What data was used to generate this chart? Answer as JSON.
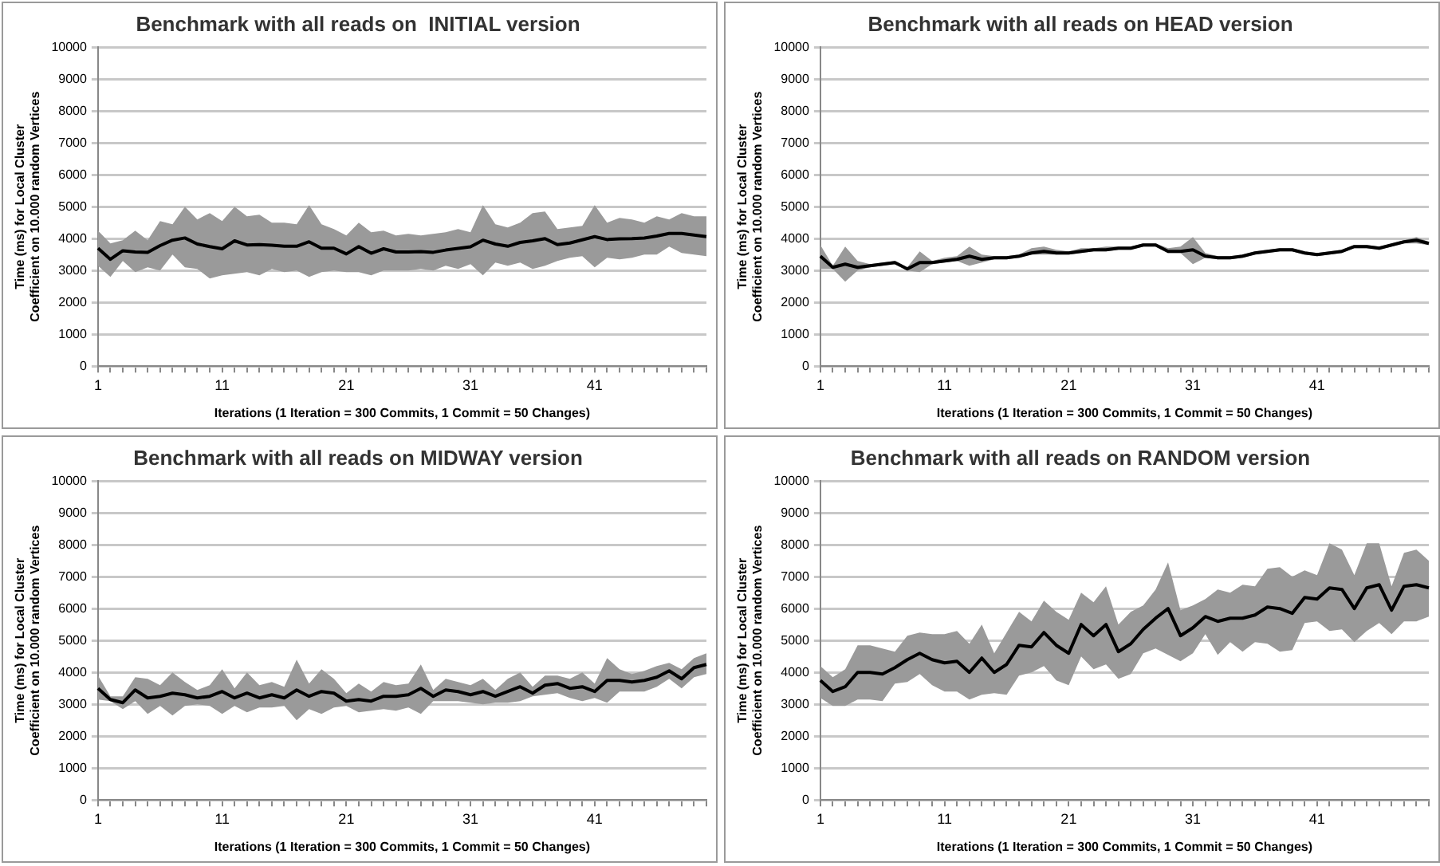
{
  "chart_data": [
    {
      "type": "line",
      "title": "Benchmark with all reads on  INITIAL version",
      "xlabel": "Iterations (1 Iteration = 300 Commits, 1 Commit = 50 Changes)",
      "ylabel": "Time (ms) for Local Cluster Coefficient on 10.000 random Vertices",
      "categories": [
        "1",
        null,
        null,
        null,
        null,
        null,
        null,
        null,
        null,
        null,
        "11",
        null,
        null,
        null,
        null,
        null,
        null,
        null,
        null,
        null,
        "21",
        null,
        null,
        null,
        null,
        null,
        null,
        null,
        null,
        null,
        "31",
        null,
        null,
        null,
        null,
        null,
        null,
        null,
        null,
        null,
        "41",
        null,
        null,
        null,
        null,
        null,
        null,
        null,
        null,
        null
      ],
      "ylim": [
        0,
        10000
      ],
      "yticks": [
        0,
        1000,
        2000,
        3000,
        4000,
        5000,
        6000,
        7000,
        8000,
        9000,
        10000
      ],
      "grid": "y",
      "legend": false,
      "marker": "none",
      "series": [
        {
          "color": "#000000",
          "values": [
            3700,
            3350,
            3620,
            3580,
            3570,
            3780,
            3950,
            4020,
            3830,
            3750,
            3680,
            3930,
            3800,
            3810,
            3790,
            3760,
            3760,
            3900,
            3700,
            3700,
            3520,
            3750,
            3540,
            3680,
            3580,
            3580,
            3590,
            3570,
            3640,
            3690,
            3740,
            3950,
            3830,
            3760,
            3880,
            3930,
            4000,
            3810,
            3860,
            3960,
            4060,
            3970,
            3990,
            4000,
            4020,
            4080,
            4160,
            4160,
            4110,
            4060
          ],
          "upper": [
            4250,
            3850,
            3950,
            4250,
            3950,
            4550,
            4450,
            5000,
            4600,
            4800,
            4550,
            5000,
            4700,
            4750,
            4500,
            4500,
            4450,
            5050,
            4450,
            4300,
            4100,
            4500,
            4200,
            4250,
            4100,
            4150,
            4100,
            4150,
            4200,
            4300,
            4200,
            5050,
            4450,
            4350,
            4500,
            4800,
            4850,
            4300,
            4350,
            4400,
            5050,
            4500,
            4650,
            4600,
            4500,
            4700,
            4600,
            4800,
            4700,
            4700
          ],
          "lower": [
            3150,
            2800,
            3300,
            2950,
            3100,
            3000,
            3500,
            3100,
            3050,
            2750,
            2850,
            2900,
            2950,
            2850,
            3050,
            2950,
            3000,
            2800,
            2950,
            3000,
            2950,
            2950,
            2850,
            3000,
            3000,
            3000,
            3050,
            3000,
            3150,
            3050,
            3200,
            2850,
            3250,
            3150,
            3250,
            3050,
            3150,
            3300,
            3400,
            3450,
            3100,
            3400,
            3350,
            3400,
            3500,
            3500,
            3750,
            3550,
            3500,
            3450
          ]
        }
      ]
    },
    {
      "type": "line",
      "title": "Benchmark with all reads on HEAD version",
      "xlabel": "Iterations (1 Iteration = 300 Commits, 1 Commit = 50 Changes)",
      "ylabel": "Time (ms) for Local Cluster Coefficient on 10.000 random Vertices",
      "categories": [
        "1",
        null,
        null,
        null,
        null,
        null,
        null,
        null,
        null,
        null,
        "11",
        null,
        null,
        null,
        null,
        null,
        null,
        null,
        null,
        null,
        "21",
        null,
        null,
        null,
        null,
        null,
        null,
        null,
        null,
        null,
        "31",
        null,
        null,
        null,
        null,
        null,
        null,
        null,
        null,
        null,
        "41",
        null,
        null,
        null,
        null,
        null,
        null,
        null,
        null,
        null
      ],
      "ylim": [
        0,
        10000
      ],
      "yticks": [
        0,
        1000,
        2000,
        3000,
        4000,
        5000,
        6000,
        7000,
        8000,
        9000,
        10000
      ],
      "grid": "y",
      "legend": false,
      "marker": "none",
      "series": [
        {
          "color": "#000000",
          "values": [
            3450,
            3100,
            3200,
            3100,
            3150,
            3200,
            3250,
            3050,
            3250,
            3250,
            3300,
            3350,
            3450,
            3350,
            3400,
            3400,
            3450,
            3550,
            3600,
            3550,
            3550,
            3600,
            3650,
            3650,
            3700,
            3700,
            3800,
            3800,
            3600,
            3600,
            3650,
            3450,
            3400,
            3400,
            3450,
            3550,
            3600,
            3650,
            3650,
            3550,
            3500,
            3550,
            3600,
            3750,
            3750,
            3700,
            3800,
            3900,
            3950,
            3850
          ],
          "upper": [
            3800,
            3150,
            3750,
            3300,
            3200,
            3250,
            3300,
            3100,
            3600,
            3300,
            3400,
            3450,
            3750,
            3500,
            3450,
            3450,
            3500,
            3700,
            3750,
            3650,
            3600,
            3700,
            3700,
            3750,
            3750,
            3750,
            3850,
            3850,
            3700,
            3750,
            4050,
            3550,
            3450,
            3450,
            3500,
            3600,
            3650,
            3700,
            3700,
            3600,
            3550,
            3600,
            3650,
            3800,
            3800,
            3750,
            3850,
            3950,
            4050,
            3900
          ],
          "lower": [
            3050,
            3050,
            2650,
            3000,
            3100,
            3150,
            3200,
            3000,
            2950,
            3200,
            3250,
            3300,
            3150,
            3250,
            3350,
            3350,
            3400,
            3500,
            3500,
            3500,
            3500,
            3550,
            3600,
            3600,
            3650,
            3650,
            3750,
            3750,
            3550,
            3550,
            3200,
            3400,
            3350,
            3350,
            3400,
            3500,
            3550,
            3600,
            3600,
            3500,
            3450,
            3500,
            3550,
            3700,
            3700,
            3650,
            3750,
            3850,
            3850,
            3800
          ]
        }
      ]
    },
    {
      "type": "line",
      "title": "Benchmark with all reads on MIDWAY version",
      "xlabel": "Iterations (1 Iteration = 300 Commits, 1 Commit = 50 Changes)",
      "ylabel": "Time (ms) for Local Cluster Coefficient on 10.000 random Vertices",
      "categories": [
        "1",
        null,
        null,
        null,
        null,
        null,
        null,
        null,
        null,
        null,
        "11",
        null,
        null,
        null,
        null,
        null,
        null,
        null,
        null,
        null,
        "21",
        null,
        null,
        null,
        null,
        null,
        null,
        null,
        null,
        null,
        "31",
        null,
        null,
        null,
        null,
        null,
        null,
        null,
        null,
        null,
        "41",
        null,
        null,
        null,
        null,
        null,
        null,
        null,
        null,
        null
      ],
      "ylim": [
        0,
        10000
      ],
      "yticks": [
        0,
        1000,
        2000,
        3000,
        4000,
        5000,
        6000,
        7000,
        8000,
        9000,
        10000
      ],
      "grid": "y",
      "legend": false,
      "marker": "none",
      "series": [
        {
          "color": "#000000",
          "values": [
            3500,
            3150,
            3050,
            3450,
            3200,
            3250,
            3350,
            3300,
            3200,
            3250,
            3400,
            3200,
            3350,
            3200,
            3300,
            3200,
            3450,
            3250,
            3400,
            3350,
            3100,
            3150,
            3100,
            3250,
            3250,
            3300,
            3500,
            3250,
            3450,
            3400,
            3300,
            3400,
            3250,
            3400,
            3550,
            3350,
            3600,
            3650,
            3500,
            3550,
            3400,
            3750,
            3750,
            3700,
            3750,
            3850,
            4050,
            3800,
            4150,
            4250
          ],
          "upper": [
            3900,
            3250,
            3250,
            3850,
            3800,
            3600,
            4000,
            3700,
            3450,
            3600,
            4100,
            3500,
            4000,
            3600,
            3700,
            3550,
            4400,
            3650,
            4100,
            3800,
            3350,
            3650,
            3400,
            3700,
            3600,
            3650,
            4250,
            3450,
            3800,
            3700,
            3600,
            3800,
            3450,
            3800,
            4000,
            3550,
            3900,
            3900,
            3800,
            4000,
            3650,
            4450,
            4100,
            3950,
            4050,
            4200,
            4300,
            4100,
            4450,
            4600
          ],
          "lower": [
            3150,
            3100,
            2850,
            3100,
            2700,
            2950,
            2650,
            2950,
            3000,
            2950,
            2700,
            2950,
            2750,
            2900,
            2900,
            2950,
            2500,
            2850,
            2700,
            2900,
            2950,
            2750,
            2800,
            2850,
            2800,
            2900,
            2700,
            3100,
            3100,
            3100,
            3050,
            3000,
            3050,
            3050,
            3100,
            3250,
            3300,
            3350,
            3200,
            3100,
            3200,
            3050,
            3400,
            3400,
            3400,
            3550,
            3800,
            3500,
            3850,
            3950
          ]
        }
      ]
    },
    {
      "type": "line",
      "title": "Benchmark with all reads on RANDOM version",
      "xlabel": "Iterations (1 Iteration = 300 Commits, 1 Commit = 50 Changes)",
      "ylabel": "Time (ms) for Local Cluster Coefficient on 10.000 random Vertices",
      "categories": [
        "1",
        null,
        null,
        null,
        null,
        null,
        null,
        null,
        null,
        null,
        "11",
        null,
        null,
        null,
        null,
        null,
        null,
        null,
        null,
        null,
        "21",
        null,
        null,
        null,
        null,
        null,
        null,
        null,
        null,
        null,
        "31",
        null,
        null,
        null,
        null,
        null,
        null,
        null,
        null,
        null,
        "41",
        null,
        null,
        null,
        null,
        null,
        null,
        null,
        null,
        null
      ],
      "ylim": [
        0,
        10000
      ],
      "yticks": [
        0,
        1000,
        2000,
        3000,
        4000,
        5000,
        6000,
        7000,
        8000,
        9000,
        10000
      ],
      "grid": "y",
      "legend": false,
      "marker": "none",
      "series": [
        {
          "color": "#000000",
          "values": [
            3750,
            3400,
            3550,
            4000,
            4000,
            3950,
            4150,
            4400,
            4600,
            4400,
            4300,
            4350,
            4000,
            4450,
            4000,
            4250,
            4850,
            4800,
            5250,
            4850,
            4600,
            5500,
            5150,
            5500,
            4650,
            4900,
            5350,
            5700,
            6000,
            5150,
            5400,
            5750,
            5600,
            5700,
            5700,
            5800,
            6050,
            6000,
            5850,
            6350,
            6300,
            6650,
            6600,
            6000,
            6650,
            6750,
            5950,
            6700,
            6750,
            6650
          ],
          "upper": [
            4200,
            3850,
            4100,
            4850,
            4850,
            4750,
            4650,
            5150,
            5250,
            5200,
            5200,
            5300,
            4900,
            5500,
            4600,
            5250,
            5900,
            5600,
            6250,
            5900,
            5650,
            6500,
            6200,
            6700,
            5500,
            5900,
            6100,
            6600,
            7450,
            5950,
            6100,
            6300,
            6600,
            6500,
            6750,
            6700,
            7250,
            7300,
            7000,
            7200,
            7050,
            8050,
            7850,
            7050,
            8050,
            8050,
            6700,
            7750,
            7850,
            7500
          ],
          "lower": [
            3200,
            2950,
            2950,
            3150,
            3150,
            3100,
            3650,
            3700,
            3950,
            3600,
            3400,
            3400,
            3150,
            3300,
            3350,
            3300,
            3900,
            4000,
            4200,
            3750,
            3600,
            4500,
            4100,
            4250,
            3800,
            3950,
            4600,
            4750,
            4550,
            4350,
            4600,
            5200,
            4550,
            4950,
            4650,
            4950,
            4900,
            4650,
            4700,
            5550,
            5600,
            5300,
            5350,
            4950,
            5300,
            5550,
            5200,
            5600,
            5600,
            5750
          ]
        }
      ]
    }
  ]
}
